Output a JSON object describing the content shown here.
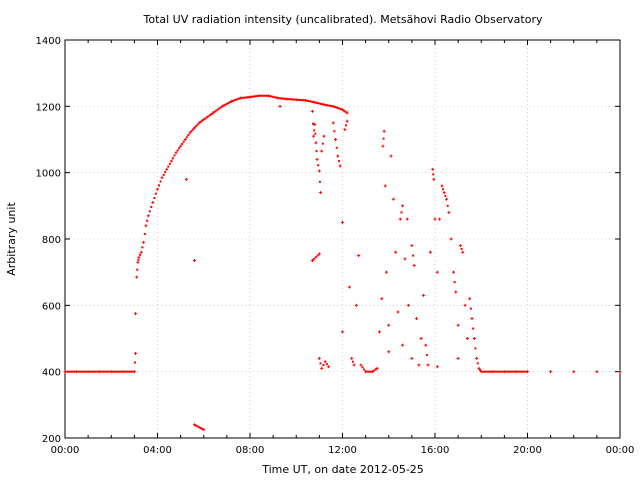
{
  "chart_data": {
    "type": "scatter",
    "title": "Total UV radiation intensity (uncalibrated). Metsähovi Radio Observatory",
    "xlabel": "Time UT, on date 2012-05-25",
    "ylabel": "Arbitrary unit",
    "xlim": [
      0,
      24
    ],
    "ylim": [
      200,
      1400
    ],
    "xticks": [
      0,
      4,
      8,
      12,
      16,
      20,
      24
    ],
    "xtick_labels": [
      "00:00",
      "04:00",
      "08:00",
      "12:00",
      "16:00",
      "20:00",
      "00:00"
    ],
    "yticks": [
      200,
      400,
      600,
      800,
      1000,
      1200,
      1400
    ],
    "ytick_labels": [
      "200",
      "400",
      "600",
      "800",
      "1000",
      "1200",
      "1400"
    ],
    "grid": true,
    "marker_color": "#ff0000",
    "series": [
      {
        "points": [
          [
            0.0,
            400
          ],
          [
            0.5,
            400
          ],
          [
            1.0,
            400
          ],
          [
            1.5,
            400
          ],
          [
            2.0,
            400
          ],
          [
            2.5,
            400
          ],
          [
            3.0,
            400
          ],
          [
            3.05,
            455
          ],
          [
            3.05,
            575
          ],
          [
            3.1,
            685
          ],
          [
            3.15,
            730
          ],
          [
            3.2,
            745
          ],
          [
            3.3,
            760
          ],
          [
            3.4,
            790
          ],
          [
            3.5,
            840
          ],
          [
            3.6,
            870
          ],
          [
            3.8,
            910
          ],
          [
            4.0,
            950
          ],
          [
            4.2,
            985
          ],
          [
            4.4,
            1010
          ],
          [
            4.6,
            1035
          ],
          [
            4.8,
            1060
          ],
          [
            5.0,
            1080
          ],
          [
            5.2,
            1100
          ],
          [
            5.4,
            1120
          ],
          [
            5.6,
            1135
          ],
          [
            5.8,
            1150
          ],
          [
            6.0,
            1160
          ],
          [
            6.4,
            1180
          ],
          [
            6.8,
            1200
          ],
          [
            7.2,
            1215
          ],
          [
            7.6,
            1225
          ],
          [
            8.0,
            1228
          ],
          [
            8.4,
            1232
          ],
          [
            8.8,
            1232
          ],
          [
            9.2,
            1225
          ],
          [
            9.6,
            1222
          ],
          [
            10.0,
            1220
          ],
          [
            10.4,
            1218
          ],
          [
            10.8,
            1212
          ],
          [
            11.2,
            1205
          ],
          [
            11.6,
            1200
          ],
          [
            12.0,
            1190
          ],
          [
            12.2,
            1180
          ],
          [
            5.25,
            980
          ],
          [
            5.6,
            735
          ],
          [
            5.6,
            240
          ],
          [
            6.0,
            225
          ],
          [
            9.3,
            1200
          ],
          [
            10.7,
            1185
          ],
          [
            10.75,
            1110
          ],
          [
            10.8,
            1145
          ],
          [
            10.85,
            1090
          ],
          [
            10.9,
            1040
          ],
          [
            11.0,
            1005
          ],
          [
            11.05,
            940
          ],
          [
            11.1,
            1065
          ],
          [
            11.2,
            1110
          ],
          [
            10.7,
            735
          ],
          [
            11.0,
            755
          ],
          [
            11.0,
            440
          ],
          [
            11.1,
            410
          ],
          [
            11.25,
            430
          ],
          [
            11.4,
            415
          ],
          [
            11.6,
            1150
          ],
          [
            11.7,
            1100
          ],
          [
            11.8,
            1050
          ],
          [
            11.9,
            1020
          ],
          [
            12.0,
            850
          ],
          [
            12.0,
            520
          ],
          [
            12.1,
            1130
          ],
          [
            12.2,
            1155
          ],
          [
            12.3,
            655
          ],
          [
            12.4,
            440
          ],
          [
            12.5,
            420
          ],
          [
            12.6,
            600
          ],
          [
            12.7,
            750
          ],
          [
            12.8,
            420
          ],
          [
            13.0,
            400
          ],
          [
            13.3,
            400
          ],
          [
            13.5,
            410
          ],
          [
            13.6,
            520
          ],
          [
            13.7,
            620
          ],
          [
            13.75,
            1080
          ],
          [
            13.8,
            1125
          ],
          [
            13.85,
            960
          ],
          [
            13.9,
            700
          ],
          [
            14.0,
            540
          ],
          [
            14.0,
            460
          ],
          [
            14.1,
            1050
          ],
          [
            14.2,
            920
          ],
          [
            14.3,
            760
          ],
          [
            14.4,
            580
          ],
          [
            14.5,
            860
          ],
          [
            14.6,
            900
          ],
          [
            14.6,
            480
          ],
          [
            14.7,
            740
          ],
          [
            14.8,
            860
          ],
          [
            14.85,
            600
          ],
          [
            15.0,
            440
          ],
          [
            15.0,
            780
          ],
          [
            15.1,
            720
          ],
          [
            15.2,
            560
          ],
          [
            15.3,
            420
          ],
          [
            15.4,
            500
          ],
          [
            15.5,
            630
          ],
          [
            15.6,
            480
          ],
          [
            15.7,
            420
          ],
          [
            15.8,
            760
          ],
          [
            15.9,
            1010
          ],
          [
            15.95,
            980
          ],
          [
            16.0,
            860
          ],
          [
            16.1,
            700
          ],
          [
            16.1,
            415
          ],
          [
            16.2,
            860
          ],
          [
            16.3,
            960
          ],
          [
            16.4,
            940
          ],
          [
            16.5,
            920
          ],
          [
            16.6,
            880
          ],
          [
            16.7,
            800
          ],
          [
            16.8,
            700
          ],
          [
            16.9,
            640
          ],
          [
            17.0,
            540
          ],
          [
            17.0,
            440
          ],
          [
            17.1,
            780
          ],
          [
            17.2,
            760
          ],
          [
            17.3,
            600
          ],
          [
            17.4,
            500
          ],
          [
            17.5,
            620
          ],
          [
            17.6,
            560
          ],
          [
            17.7,
            500
          ],
          [
            17.8,
            440
          ],
          [
            17.9,
            410
          ],
          [
            18.0,
            400
          ],
          [
            18.5,
            400
          ],
          [
            19.0,
            400
          ],
          [
            19.5,
            400
          ],
          [
            20.0,
            400
          ],
          [
            21.0,
            400
          ],
          [
            22.0,
            400
          ],
          [
            23.0,
            400
          ],
          [
            24.0,
            400
          ]
        ]
      }
    ]
  }
}
